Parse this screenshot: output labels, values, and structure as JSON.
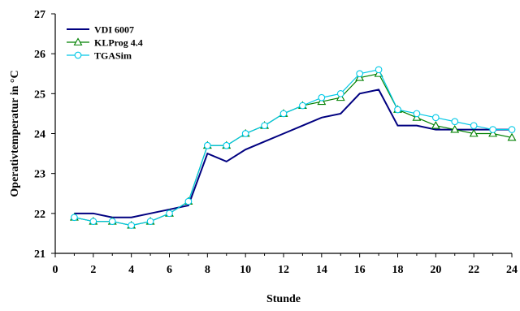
{
  "chart_data": {
    "type": "line",
    "xlabel": "Stunde",
    "ylabel": "Operativtemperatur in °C",
    "xlim": [
      0,
      24
    ],
    "ylim": [
      21,
      27
    ],
    "x_ticks": [
      0,
      2,
      4,
      6,
      8,
      10,
      12,
      14,
      16,
      18,
      20,
      22,
      24
    ],
    "y_ticks": [
      21,
      22,
      23,
      24,
      25,
      26,
      27
    ],
    "grid": false,
    "legend_position": "top-left",
    "series": [
      {
        "name": "VDI 6007",
        "color": "#000080",
        "marker": "none",
        "x": [
          1,
          2,
          3,
          4,
          5,
          6,
          7,
          8,
          9,
          10,
          11,
          12,
          13,
          14,
          15,
          16,
          17,
          18,
          19,
          20,
          21,
          22,
          23,
          24
        ],
        "values": [
          22.0,
          22.0,
          21.9,
          21.9,
          22.0,
          22.1,
          22.2,
          23.5,
          23.3,
          23.6,
          23.8,
          24.0,
          24.2,
          24.4,
          24.5,
          25.0,
          25.1,
          24.2,
          24.2,
          24.1,
          24.1,
          24.1,
          24.1,
          24.1
        ]
      },
      {
        "name": "KLProg 4.4",
        "color": "#008000",
        "marker": "triangle",
        "x": [
          1,
          2,
          3,
          4,
          5,
          6,
          7,
          8,
          9,
          10,
          11,
          12,
          13,
          14,
          15,
          16,
          17,
          18,
          19,
          20,
          21,
          22,
          23,
          24
        ],
        "values": [
          21.9,
          21.8,
          21.8,
          21.7,
          21.8,
          22.0,
          22.3,
          23.7,
          23.7,
          24.0,
          24.2,
          24.5,
          24.7,
          24.8,
          24.9,
          25.4,
          25.5,
          24.6,
          24.4,
          24.2,
          24.1,
          24.0,
          24.0,
          23.9
        ]
      },
      {
        "name": "TGASim",
        "color": "#00c8e6",
        "marker": "circle",
        "x": [
          1,
          2,
          3,
          4,
          5,
          6,
          7,
          8,
          9,
          10,
          11,
          12,
          13,
          14,
          15,
          16,
          17,
          18,
          19,
          20,
          21,
          22,
          23,
          24
        ],
        "values": [
          21.9,
          21.8,
          21.8,
          21.7,
          21.8,
          22.0,
          22.3,
          23.7,
          23.7,
          24.0,
          24.2,
          24.5,
          24.7,
          24.9,
          25.0,
          25.5,
          25.6,
          24.6,
          24.5,
          24.4,
          24.3,
          24.2,
          24.1,
          24.1
        ]
      }
    ]
  }
}
